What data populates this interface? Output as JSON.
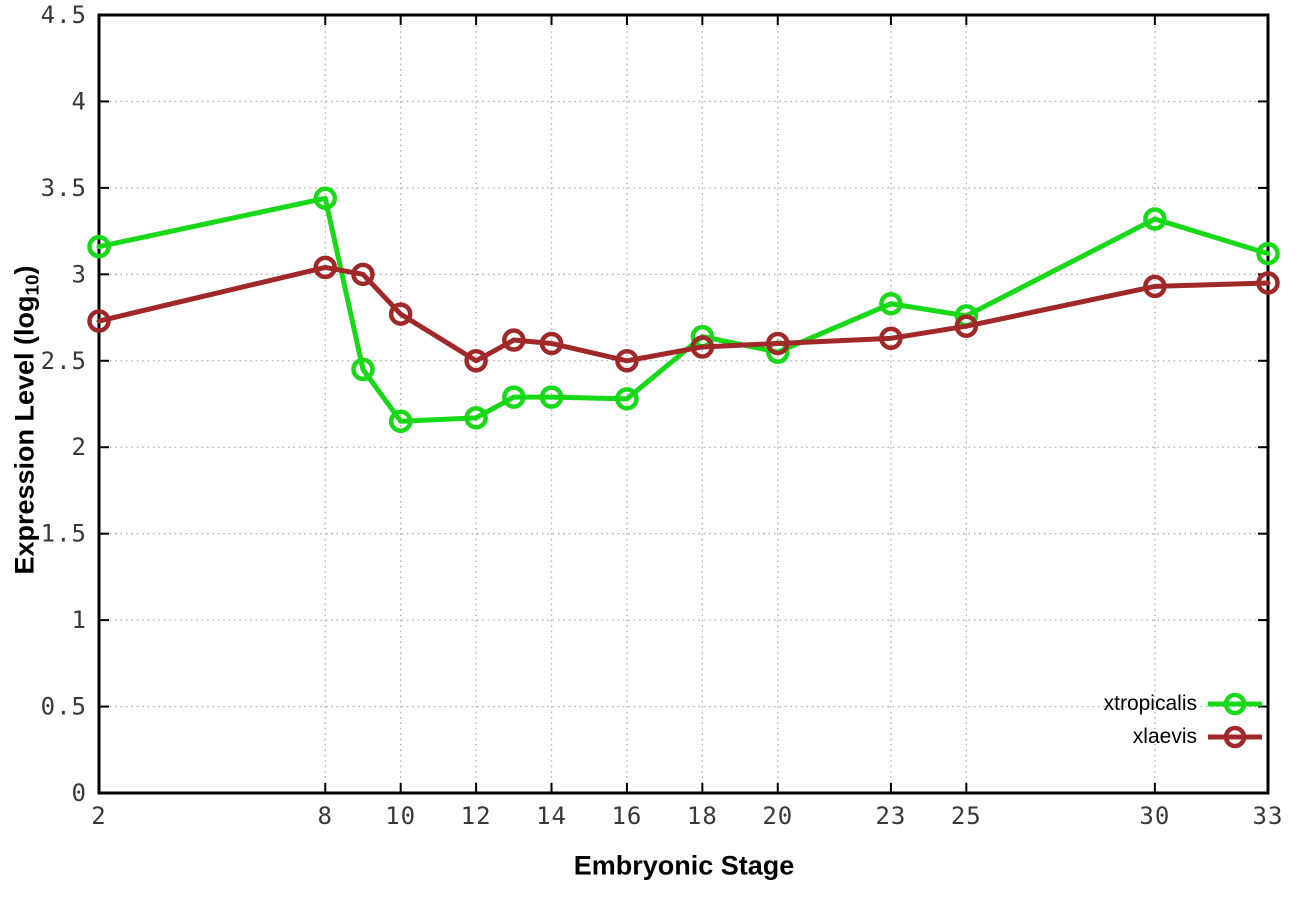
{
  "chart_data": {
    "type": "line",
    "title": "",
    "xlabel": "Embryonic Stage",
    "ylabel": "Expression Level (log10)",
    "ylabel_parts": {
      "main": "Expression Level (log",
      "sub": "10",
      "close": ")"
    },
    "x": [
      2,
      8,
      9,
      10,
      12,
      13,
      14,
      16,
      18,
      20,
      23,
      25,
      30,
      33
    ],
    "series": [
      {
        "name": "xtropicalis",
        "color": "#17d917",
        "values": [
          3.16,
          3.44,
          2.45,
          2.15,
          2.17,
          2.29,
          2.29,
          2.28,
          2.64,
          2.55,
          2.83,
          2.76,
          3.32,
          3.12
        ]
      },
      {
        "name": "xlaevis",
        "color": "#a02828",
        "values": [
          2.73,
          3.04,
          3.0,
          2.77,
          2.5,
          2.62,
          2.6,
          2.5,
          2.58,
          2.6,
          2.63,
          2.7,
          2.93,
          2.95
        ]
      }
    ],
    "x_ticks": [
      2,
      8,
      10,
      12,
      14,
      16,
      18,
      20,
      23,
      25,
      30,
      33
    ],
    "x_tick_labels": [
      "2",
      "8",
      "10",
      "12",
      "14",
      "16",
      "18",
      "20",
      "23",
      "25",
      "30",
      "33"
    ],
    "y_ticks": [
      0,
      0.5,
      1,
      1.5,
      2,
      2.5,
      3,
      3.5,
      4,
      4.5
    ],
    "y_tick_labels": [
      "0",
      "0.5",
      "1",
      "1.5",
      "2",
      "2.5",
      "3",
      "3.5",
      "4",
      "4.5"
    ],
    "xlim": [
      2,
      33
    ],
    "ylim": [
      0,
      4.5
    ],
    "grid": true,
    "grid_style": "dotted",
    "legend_position": "inside-bottom-right",
    "marker": "open-circle",
    "colors": {
      "border": "#000000",
      "grid": "#b0b0b0",
      "tick_text": "#383838"
    }
  }
}
